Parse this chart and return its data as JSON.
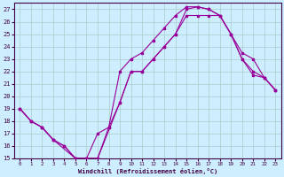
{
  "xlabel": "Windchill (Refroidissement éolien,°C)",
  "xlim": [
    -0.5,
    23.5
  ],
  "ylim": [
    15,
    27.5
  ],
  "yticks": [
    15,
    16,
    17,
    18,
    19,
    20,
    21,
    22,
    23,
    24,
    25,
    26,
    27
  ],
  "xticks": [
    0,
    1,
    2,
    3,
    4,
    5,
    6,
    7,
    8,
    9,
    10,
    11,
    12,
    13,
    14,
    15,
    16,
    17,
    18,
    19,
    20,
    21,
    22,
    23
  ],
  "background_color": "#cceeff",
  "grid_color": "#aacccc",
  "line_color": "#990099",
  "line1_x": [
    0,
    1,
    2,
    3,
    4,
    5,
    6,
    7,
    8,
    9,
    10,
    11,
    12,
    13,
    14,
    15,
    16,
    17,
    18,
    19,
    20,
    21,
    22,
    23
  ],
  "line1_y": [
    19,
    18,
    17.5,
    16.5,
    16,
    15,
    15,
    15,
    17.5,
    19.5,
    22,
    22,
    23,
    24,
    25,
    27,
    27.2,
    27,
    26.5,
    25,
    23,
    22,
    21.5,
    20.5
  ],
  "line2_x": [
    0,
    1,
    2,
    3,
    4,
    5,
    6,
    7,
    8,
    9,
    10,
    11,
    12,
    13,
    14,
    15,
    16,
    17,
    18,
    19,
    20,
    21,
    22,
    23
  ],
  "line2_y": [
    19,
    18,
    17.5,
    16.5,
    16,
    15,
    15,
    17,
    17.5,
    22,
    23,
    23.5,
    24.5,
    25.5,
    26.5,
    27.2,
    27.2,
    27,
    26.5,
    25,
    23,
    21.7,
    21.5,
    20.5
  ],
  "line3_x": [
    0,
    1,
    2,
    3,
    5,
    6,
    7,
    9,
    10,
    11,
    12,
    13,
    14,
    15,
    16,
    17,
    18,
    19,
    20,
    21,
    22,
    23
  ],
  "line3_y": [
    19,
    18,
    17.5,
    16.5,
    15,
    15,
    15,
    19.5,
    22,
    22,
    23,
    24,
    25,
    26.5,
    26.5,
    26.5,
    26.5,
    25,
    23.5,
    23,
    21.5,
    20.5
  ]
}
